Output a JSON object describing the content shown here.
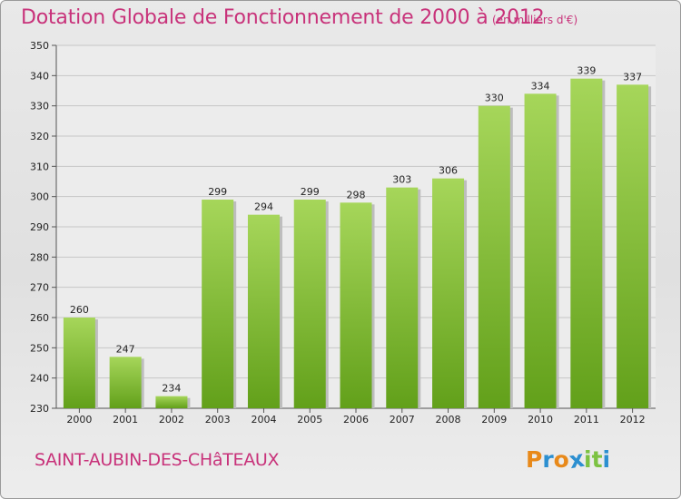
{
  "header": {
    "title": "Dotation Globale de Fonctionnement de 2000 à 2012",
    "unit": "(en milliers d'€)"
  },
  "footer": {
    "commune": "SAINT-AUBIN-DES-CHâTEAUX",
    "logo": "Proxiti",
    "logo_letters": [
      {
        "ch": "P",
        "color": "#e8891a"
      },
      {
        "ch": "r",
        "color": "#2c8fd0"
      },
      {
        "ch": "o",
        "color": "#e8891a"
      },
      {
        "ch": "x",
        "color": "#2c8fd0"
      },
      {
        "ch": "i",
        "color": "#7cc242"
      },
      {
        "ch": "t",
        "color": "#7cc242"
      },
      {
        "ch": "i",
        "color": "#2c8fd0"
      }
    ]
  },
  "colors": {
    "title": "#c8327a",
    "bar_light": "#a6d65a",
    "bar_dark": "#62a01a",
    "grid": "#c6c6c6"
  },
  "chart_data": {
    "type": "bar",
    "title": "Dotation Globale de Fonctionnement de 2000 à 2012",
    "subtitle": "(en milliers d'€)",
    "categories": [
      "2000",
      "2001",
      "2002",
      "2003",
      "2004",
      "2005",
      "2006",
      "2007",
      "2008",
      "2009",
      "2010",
      "2011",
      "2012"
    ],
    "values": [
      260,
      247,
      234,
      299,
      294,
      299,
      298,
      303,
      306,
      330,
      334,
      339,
      337
    ],
    "ylim": [
      230,
      350
    ],
    "yticks": [
      230,
      240,
      250,
      260,
      270,
      280,
      290,
      300,
      310,
      320,
      330,
      340,
      350
    ],
    "grid": true,
    "xlabel": "",
    "ylabel": ""
  }
}
